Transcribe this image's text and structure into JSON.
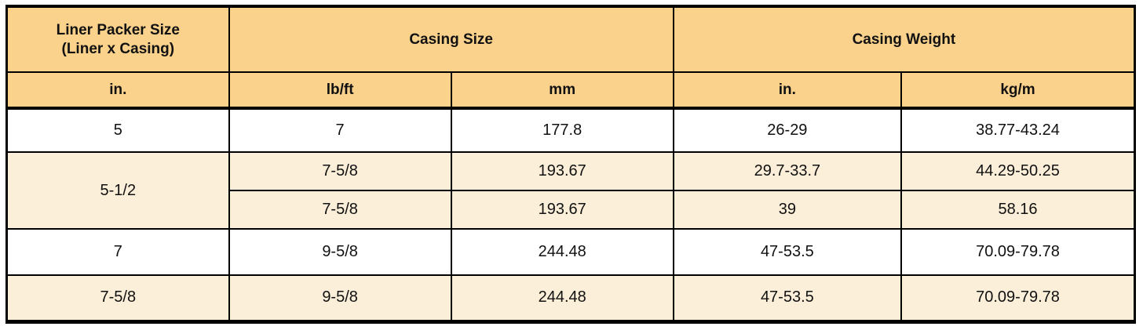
{
  "colors": {
    "header_bg": "#fbd28c",
    "stripe_bg": "#fcefd9",
    "white_bg": "#ffffff",
    "border": "#000000",
    "text": "#111111"
  },
  "table": {
    "header": {
      "col1_line1": "Liner Packer Size",
      "col1_line2": "(Liner x Casing)",
      "casing_size": "Casing Size",
      "casing_weight": "Casing Weight"
    },
    "units": [
      "in.",
      "lb/ft",
      "mm",
      "in.",
      "kg/m"
    ],
    "rows": [
      {
        "cells": [
          "5",
          "7",
          "177.8",
          "26-29",
          "38.77-43.24"
        ]
      },
      {
        "cells": [
          "5-1/2",
          "7-5/8",
          "193.67",
          "29.7-33.7",
          "44.29-50.25"
        ]
      },
      {
        "cells": [
          "7-5/8",
          "193.67",
          "39",
          "58.16"
        ]
      },
      {
        "cells": [
          "7",
          "9-5/8",
          "244.48",
          "47-53.5",
          "70.09-79.78"
        ]
      },
      {
        "cells": [
          "7-5/8",
          "9-5/8",
          "244.48",
          "47-53.5",
          "70.09-79.78"
        ]
      }
    ]
  }
}
